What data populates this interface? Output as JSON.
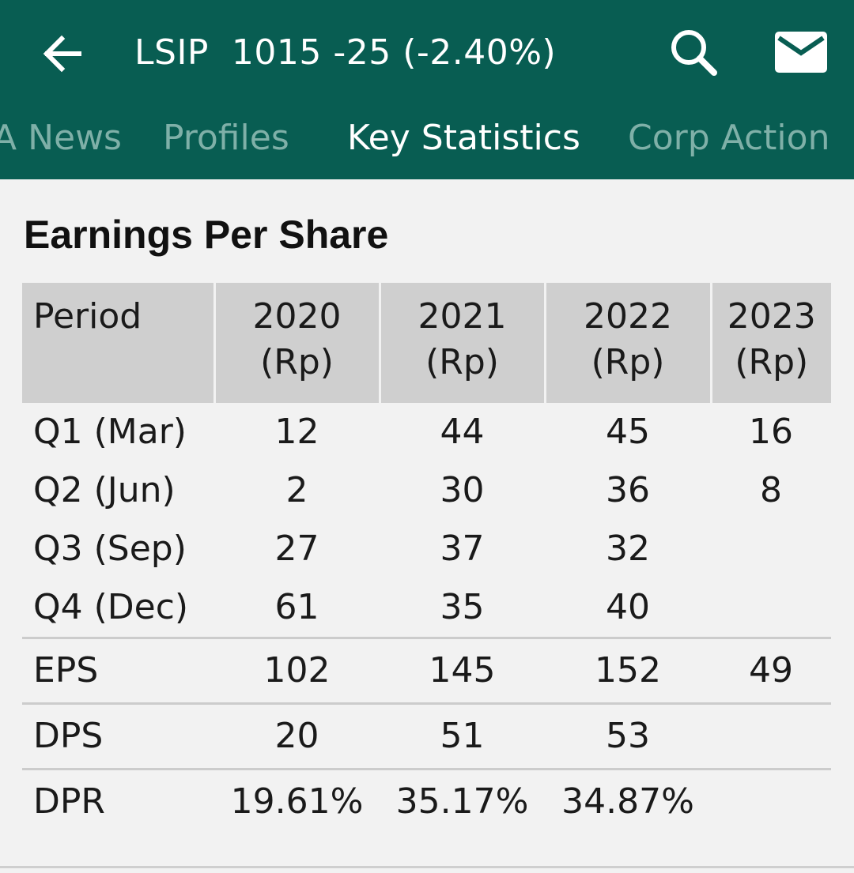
{
  "header": {
    "title": "LSIP  1015 -25 (-2.40%)",
    "back_icon": "arrow-left-icon",
    "search_icon": "search-icon",
    "mail_icon": "mail-icon",
    "bar_color": "#085d52"
  },
  "tabs": [
    {
      "label": "A News",
      "active": false
    },
    {
      "label": "Profiles",
      "active": false
    },
    {
      "label": "Key Statistics",
      "active": true
    },
    {
      "label": "Corp Action",
      "active": false
    }
  ],
  "section": {
    "title": "Earnings Per Share"
  },
  "table": {
    "headers": [
      {
        "line1": "Period",
        "line2": ""
      },
      {
        "line1": "2020",
        "line2": "(Rp)"
      },
      {
        "line1": "2021",
        "line2": "(Rp)"
      },
      {
        "line1": "2022",
        "line2": "(Rp)"
      },
      {
        "line1": "2023",
        "line2": "(Rp)"
      }
    ],
    "rows": [
      {
        "label": "Q1 (Mar)",
        "values": [
          "12",
          "44",
          "45",
          "16"
        ]
      },
      {
        "label": "Q2 (Jun)",
        "values": [
          "2",
          "30",
          "36",
          "8"
        ]
      },
      {
        "label": "Q3 (Sep)",
        "values": [
          "27",
          "37",
          "32",
          ""
        ]
      },
      {
        "label": "Q4 (Dec)",
        "values": [
          "61",
          "35",
          "40",
          ""
        ]
      },
      {
        "label": "EPS",
        "values": [
          "102",
          "145",
          "152",
          "49"
        ]
      },
      {
        "label": "DPS",
        "values": [
          "20",
          "51",
          "53",
          ""
        ]
      },
      {
        "label": "DPR",
        "values": [
          "19.61%",
          "35.17%",
          "34.87%",
          ""
        ]
      }
    ]
  }
}
